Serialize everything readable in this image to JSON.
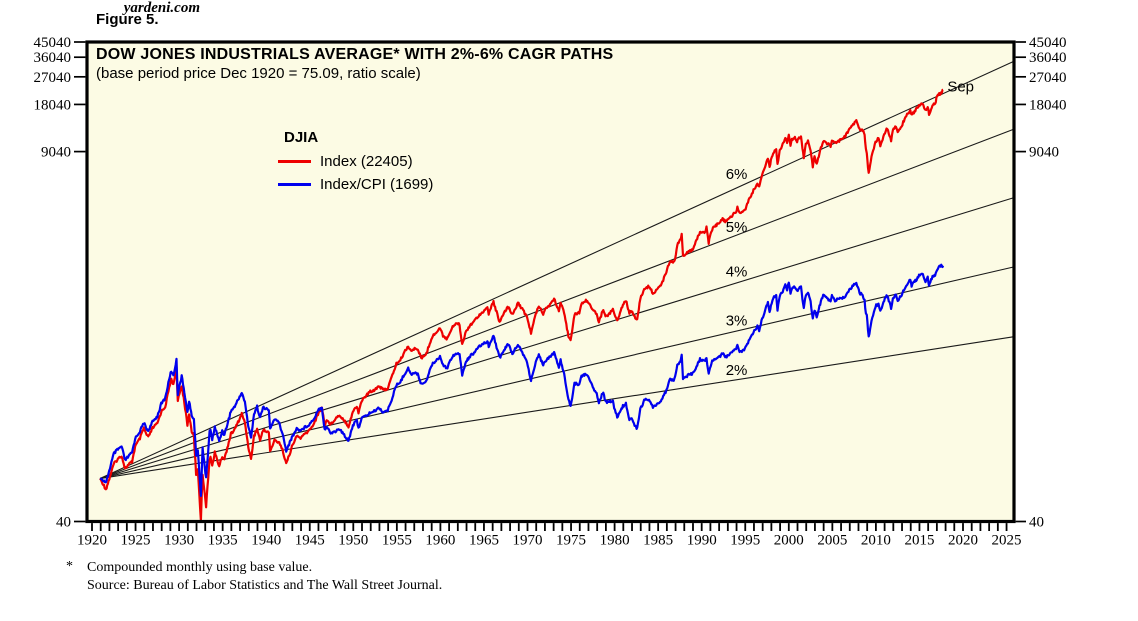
{
  "figure_label": "Figure 5.",
  "chart": {
    "title": "DOW JONES INDUSTRIALS AVERAGE* WITH 2%-6% CAGR PATHS",
    "subtitle": "(base period price Dec 1920 = 75.09, ratio scale)",
    "watermark": "yardeni.com",
    "legend": {
      "heading": "DJIA",
      "items": [
        {
          "label": "Index (22405)",
          "color": "#ee0000"
        },
        {
          "label": "Index/CPI (1699)",
          "color": "#0000ee"
        }
      ]
    },
    "colors": {
      "plot_bg": "#fcfbe4",
      "border": "#000000",
      "index_line": "#ee0000",
      "index_cpi_line": "#0000ee",
      "cagr_line": "#1a1a1a",
      "end_label": "#ee0000"
    }
  },
  "footnote": {
    "marker": "*",
    "line1": "Compounded monthly using base value.",
    "line2": "Source: Bureau of Labor Statistics and The Wall Street Journal."
  },
  "chart_data": {
    "type": "line",
    "title": "DOW JONES INDUSTRIALS AVERAGE* WITH 2%-6% CAGR PATHS",
    "subtitle": "(base period price Dec 1920 = 75.09, ratio scale)",
    "y_scale": "log",
    "ylim": [
      40,
      45040
    ],
    "yticks": [
      45040,
      36040,
      27040,
      18040,
      9040,
      40
    ],
    "xlim": [
      1919.4,
      2025.9
    ],
    "xticks": [
      1920,
      1925,
      1930,
      1935,
      1940,
      1945,
      1950,
      1955,
      1960,
      1965,
      1970,
      1975,
      1980,
      1985,
      1990,
      1995,
      2000,
      2005,
      2010,
      2015,
      2020,
      2025
    ],
    "grid": false,
    "legend_position": "inside-upper-left",
    "cagr_paths": {
      "base_year": 1920.92,
      "base_value": 75.09,
      "rates_pct": [
        2,
        3,
        4,
        5,
        6
      ],
      "labels": [
        {
          "text": "6%",
          "year": 1994,
          "value": 6500
        },
        {
          "text": "5%",
          "year": 1994,
          "value": 3000
        },
        {
          "text": "4%",
          "year": 1994,
          "value": 1560
        },
        {
          "text": "3%",
          "year": 1994,
          "value": 760
        },
        {
          "text": "2%",
          "year": 1994,
          "value": 368
        }
      ]
    },
    "end_label": {
      "text": "Sep",
      "year": 2018.2,
      "value": 23500
    },
    "series_names": [
      "Index (22405)",
      "Index/CPI (1699)"
    ],
    "series_end_values": {
      "index": 22405,
      "index_cpi": 1699
    },
    "columns": [
      "year",
      "index",
      "index_cpi"
    ],
    "points": [
      [
        1920.92,
        75,
        75
      ],
      [
        1921.3,
        69,
        73
      ],
      [
        1921.6,
        64,
        70
      ],
      [
        1921.9,
        72,
        81
      ],
      [
        1922.5,
        93,
        108
      ],
      [
        1922.9,
        99,
        114
      ],
      [
        1923.4,
        105,
        120
      ],
      [
        1923.8,
        87,
        98
      ],
      [
        1924.2,
        92,
        104
      ],
      [
        1924.6,
        96,
        110
      ],
      [
        1924.95,
        120,
        135
      ],
      [
        1925.5,
        135,
        150
      ],
      [
        1925.95,
        157,
        170
      ],
      [
        1926.2,
        145,
        158
      ],
      [
        1926.45,
        137,
        151
      ],
      [
        1926.95,
        157,
        172
      ],
      [
        1927.5,
        168,
        187
      ],
      [
        1927.95,
        200,
        224
      ],
      [
        1928.4,
        215,
        244
      ],
      [
        1928.95,
        300,
        340
      ],
      [
        1929.1,
        320,
        363
      ],
      [
        1929.35,
        298,
        340
      ],
      [
        1929.7,
        381,
        427
      ],
      [
        1929.85,
        230,
        258
      ],
      [
        1929.95,
        248,
        280
      ],
      [
        1930.3,
        294,
        335
      ],
      [
        1930.6,
        230,
        269
      ],
      [
        1930.95,
        164,
        198
      ],
      [
        1931.15,
        190,
        232
      ],
      [
        1931.45,
        150,
        188
      ],
      [
        1931.7,
        140,
        180
      ],
      [
        1931.95,
        80,
        106
      ],
      [
        1932.15,
        85,
        115
      ],
      [
        1932.5,
        41,
        58
      ],
      [
        1932.7,
        80,
        118
      ],
      [
        1932.95,
        60,
        89
      ],
      [
        1933.1,
        50,
        75
      ],
      [
        1933.5,
        100,
        149
      ],
      [
        1933.6,
        105,
        154
      ],
      [
        1933.8,
        90,
        132
      ],
      [
        1934.1,
        110,
        160
      ],
      [
        1934.6,
        90,
        130
      ],
      [
        1934.95,
        104,
        151
      ],
      [
        1935.2,
        100,
        142
      ],
      [
        1935.95,
        144,
        202
      ],
      [
        1936.4,
        155,
        216
      ],
      [
        1936.95,
        180,
        249
      ],
      [
        1937.2,
        194,
        265
      ],
      [
        1937.55,
        170,
        229
      ],
      [
        1937.95,
        120,
        162
      ],
      [
        1938.25,
        99,
        136
      ],
      [
        1938.6,
        140,
        193
      ],
      [
        1938.95,
        155,
        215
      ],
      [
        1939.3,
        132,
        184
      ],
      [
        1939.7,
        155,
        216
      ],
      [
        1939.95,
        150,
        208
      ],
      [
        1940.3,
        148,
        205
      ],
      [
        1940.45,
        112,
        155
      ],
      [
        1940.95,
        131,
        180
      ],
      [
        1941.5,
        128,
        169
      ],
      [
        1941.95,
        111,
        139
      ],
      [
        1942.3,
        93,
        113
      ],
      [
        1942.95,
        119,
        137
      ],
      [
        1943.5,
        140,
        156
      ],
      [
        1943.95,
        136,
        152
      ],
      [
        1944.5,
        145,
        160
      ],
      [
        1944.95,
        152,
        166
      ],
      [
        1945.5,
        169,
        181
      ],
      [
        1945.95,
        193,
        206
      ],
      [
        1946.4,
        213,
        212
      ],
      [
        1946.7,
        165,
        154
      ],
      [
        1946.95,
        177,
        160
      ],
      [
        1947.4,
        166,
        146
      ],
      [
        1947.95,
        181,
        150
      ],
      [
        1948.4,
        190,
        155
      ],
      [
        1948.95,
        177,
        142
      ],
      [
        1949.45,
        161,
        131
      ],
      [
        1949.95,
        200,
        164
      ],
      [
        1950.4,
        216,
        175
      ],
      [
        1950.6,
        197,
        157
      ],
      [
        1950.95,
        235,
        182
      ],
      [
        1951.4,
        250,
        187
      ],
      [
        1951.95,
        269,
        197
      ],
      [
        1952.4,
        275,
        201
      ],
      [
        1952.95,
        292,
        212
      ],
      [
        1953.4,
        275,
        199
      ],
      [
        1953.95,
        281,
        203
      ],
      [
        1954.4,
        330,
        239
      ],
      [
        1954.95,
        404,
        294
      ],
      [
        1955.4,
        425,
        309
      ],
      [
        1955.95,
        488,
        353
      ],
      [
        1956.3,
        521,
        376
      ],
      [
        1956.7,
        485,
        345
      ],
      [
        1956.95,
        499,
        351
      ],
      [
        1957.4,
        505,
        350
      ],
      [
        1957.8,
        435,
        298
      ],
      [
        1958.4,
        470,
        317
      ],
      [
        1958.95,
        584,
        392
      ],
      [
        1959.4,
        630,
        420
      ],
      [
        1959.95,
        679,
        448
      ],
      [
        1960.3,
        610,
        400
      ],
      [
        1960.8,
        580,
        378
      ],
      [
        1960.95,
        616,
        401
      ],
      [
        1961.4,
        700,
        454
      ],
      [
        1961.95,
        735,
        475
      ],
      [
        1962.2,
        710,
        458
      ],
      [
        1962.5,
        536,
        344
      ],
      [
        1962.95,
        652,
        416
      ],
      [
        1963.4,
        710,
        450
      ],
      [
        1963.95,
        763,
        479
      ],
      [
        1964.4,
        820,
        513
      ],
      [
        1964.95,
        874,
        544
      ],
      [
        1965.4,
        910,
        562
      ],
      [
        1965.55,
        840,
        517
      ],
      [
        1965.95,
        969,
        591
      ],
      [
        1966.1,
        995,
        605
      ],
      [
        1966.8,
        744,
        441
      ],
      [
        1967.4,
        860,
        501
      ],
      [
        1967.7,
        926,
        535
      ],
      [
        1967.95,
        905,
        518
      ],
      [
        1968.25,
        825,
        468
      ],
      [
        1968.9,
        985,
        538
      ],
      [
        1969.4,
        900,
        477
      ],
      [
        1969.95,
        800,
        412
      ],
      [
        1970.4,
        631,
        316
      ],
      [
        1970.95,
        838,
        409
      ],
      [
        1971.3,
        950,
        457
      ],
      [
        1971.8,
        840,
        399
      ],
      [
        1971.95,
        890,
        420
      ],
      [
        1972.5,
        950,
        442
      ],
      [
        1972.95,
        1020,
        466
      ],
      [
        1973.05,
        1052,
        478
      ],
      [
        1973.6,
        870,
        382
      ],
      [
        1973.8,
        987,
        424
      ],
      [
        1974.2,
        846,
        351
      ],
      [
        1974.7,
        607,
        238
      ],
      [
        1974.95,
        578,
        216
      ],
      [
        1975.4,
        830,
        303
      ],
      [
        1975.95,
        852,
        298
      ],
      [
        1976.2,
        975,
        339
      ],
      [
        1976.7,
        1015,
        345
      ],
      [
        1976.95,
        1005,
        335
      ],
      [
        1977.4,
        915,
        296
      ],
      [
        1977.95,
        831,
        260
      ],
      [
        1978.2,
        742,
        229
      ],
      [
        1978.7,
        900,
        269
      ],
      [
        1978.95,
        805,
        231
      ],
      [
        1979.4,
        840,
        231
      ],
      [
        1979.8,
        897,
        236
      ],
      [
        1979.95,
        839,
        212
      ],
      [
        1980.3,
        759,
        184
      ],
      [
        1980.95,
        964,
        217
      ],
      [
        1981.3,
        1024,
        224
      ],
      [
        1981.7,
        850,
        179
      ],
      [
        1981.95,
        875,
        181
      ],
      [
        1982.3,
        800,
        164
      ],
      [
        1982.6,
        777,
        156
      ],
      [
        1982.95,
        1046,
        208
      ],
      [
        1983.4,
        1200,
        235
      ],
      [
        1983.95,
        1259,
        241
      ],
      [
        1984.4,
        1130,
        212
      ],
      [
        1984.95,
        1212,
        223
      ],
      [
        1985.4,
        1300,
        235
      ],
      [
        1985.95,
        1547,
        275
      ],
      [
        1986.3,
        1800,
        321
      ],
      [
        1986.7,
        1775,
        314
      ],
      [
        1986.95,
        1896,
        333
      ],
      [
        1987.2,
        2300,
        396
      ],
      [
        1987.6,
        2500,
        426
      ],
      [
        1987.7,
        2722,
        459
      ],
      [
        1987.85,
        1939,
        326
      ],
      [
        1988.4,
        2050,
        340
      ],
      [
        1988.95,
        2169,
        349
      ],
      [
        1989.4,
        2450,
        384
      ],
      [
        1989.8,
        2791,
        431
      ],
      [
        1989.95,
        2753,
        424
      ],
      [
        1990.4,
        2800,
        420
      ],
      [
        1990.55,
        2999,
        442
      ],
      [
        1990.8,
        2365,
        344
      ],
      [
        1990.95,
        2634,
        382
      ],
      [
        1991.2,
        2900,
        418
      ],
      [
        1991.95,
        3169,
        446
      ],
      [
        1992.4,
        3350,
        466
      ],
      [
        1992.7,
        3250,
        448
      ],
      [
        1992.95,
        3301,
        451
      ],
      [
        1993.4,
        3500,
        473
      ],
      [
        1993.95,
        3754,
        500
      ],
      [
        1994.1,
        3978,
        528
      ],
      [
        1994.35,
        3650,
        480
      ],
      [
        1994.95,
        3834,
        497
      ],
      [
        1995.4,
        4400,
        562
      ],
      [
        1995.95,
        5117,
        647
      ],
      [
        1996.4,
        5600,
        695
      ],
      [
        1996.6,
        5350,
        661
      ],
      [
        1996.95,
        6448,
        789
      ],
      [
        1997.2,
        7000,
        851
      ],
      [
        1997.6,
        8259,
        998
      ],
      [
        1997.8,
        7161,
        862
      ],
      [
        1997.95,
        7908,
        951
      ],
      [
        1998.3,
        9000,
        1074
      ],
      [
        1998.55,
        9337,
        1110
      ],
      [
        1998.7,
        7539,
        895
      ],
      [
        1998.95,
        9181,
        1087
      ],
      [
        1999.3,
        10000,
        1167
      ],
      [
        1999.6,
        11209,
        1301
      ],
      [
        1999.8,
        10300,
        1188
      ],
      [
        2000.0,
        11723,
        1347
      ],
      [
        2000.2,
        9811,
        1112
      ],
      [
        2000.35,
        10733,
        1215
      ],
      [
        2000.7,
        11215,
        1253
      ],
      [
        2000.95,
        10414,
        1161
      ],
      [
        2001.1,
        10887,
        1206
      ],
      [
        2001.4,
        11337,
        1243
      ],
      [
        2001.72,
        8236,
        899
      ],
      [
        2001.95,
        10021,
        1100
      ],
      [
        2002.2,
        10635,
        1160
      ],
      [
        2002.5,
        9243,
        997
      ],
      [
        2002.75,
        7286,
        781
      ],
      [
        2002.95,
        8341,
        894
      ],
      [
        2003.2,
        7524,
        792
      ],
      [
        2003.6,
        9200,
        972
      ],
      [
        2003.95,
        10453,
        1100
      ],
      [
        2004.4,
        10225,
        1055
      ],
      [
        2004.8,
        9749,
        996
      ],
      [
        2004.95,
        10783,
        1099
      ],
      [
        2005.3,
        10192,
        1016
      ],
      [
        2005.7,
        10568,
        1044
      ],
      [
        2005.95,
        10717,
        1056
      ],
      [
        2006.4,
        11150,
        1068
      ],
      [
        2006.95,
        12463,
        1198
      ],
      [
        2007.3,
        13264,
        1250
      ],
      [
        2007.75,
        14164,
        1318
      ],
      [
        2007.95,
        13264,
        1226
      ],
      [
        2008.2,
        12262,
        1114
      ],
      [
        2008.4,
        12638,
        1132
      ],
      [
        2008.7,
        11543,
        1024
      ],
      [
        2008.85,
        9325,
        835
      ],
      [
        2008.95,
        8829,
        815
      ],
      [
        2009.17,
        6547,
        597
      ],
      [
        2009.5,
        8447,
        761
      ],
      [
        2009.95,
        10428,
        937
      ],
      [
        2010.3,
        11008,
        980
      ],
      [
        2010.5,
        9774,
        870
      ],
      [
        2010.95,
        11577,
        1025
      ],
      [
        2011.3,
        12810,
        1105
      ],
      [
        2011.75,
        10655,
        911
      ],
      [
        2011.95,
        12217,
        1051
      ],
      [
        2012.3,
        13212,
        1114
      ],
      [
        2012.5,
        12101,
        1023
      ],
      [
        2012.95,
        13104,
        1107
      ],
      [
        2013.4,
        15115,
        1259
      ],
      [
        2013.95,
        16576,
        1381
      ],
      [
        2014.1,
        15372,
        1270
      ],
      [
        2014.7,
        17098,
        1395
      ],
      [
        2014.95,
        17823,
        1472
      ],
      [
        2015.4,
        18312,
        1494
      ],
      [
        2015.7,
        16528,
        1345
      ],
      [
        2015.95,
        17425,
        1429
      ],
      [
        2016.1,
        15660,
        1281
      ],
      [
        2016.5,
        17930,
        1445
      ],
      [
        2016.8,
        18142,
        1457
      ],
      [
        2016.95,
        19763,
        1589
      ],
      [
        2017.2,
        20812,
        1657
      ],
      [
        2017.5,
        21350,
        1691
      ],
      [
        2017.72,
        22405,
        1699
      ]
    ]
  }
}
